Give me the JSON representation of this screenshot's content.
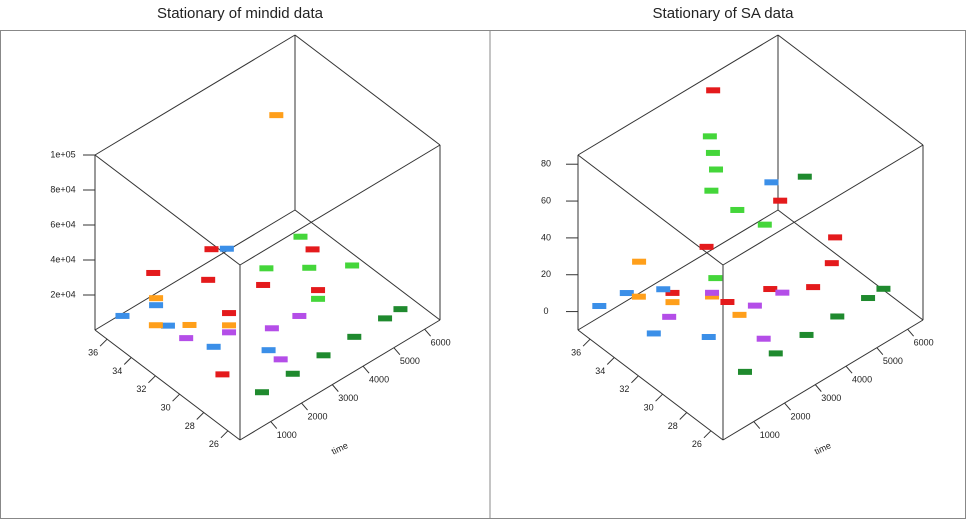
{
  "chart_data": [
    {
      "type": "scatter3d",
      "title": "Stationary of mindid data",
      "x_label": "time",
      "xlim": [
        0,
        6500
      ],
      "ylim": [
        25,
        37
      ],
      "zlim": [
        0,
        100000
      ],
      "xticks": [
        1000,
        2000,
        3000,
        4000,
        5000,
        6000
      ],
      "yticks": [
        26,
        28,
        30,
        32,
        34,
        36
      ],
      "zticks": [
        {
          "value": 20000,
          "label": "2e+04"
        },
        {
          "value": 40000,
          "label": "4e+04"
        },
        {
          "value": 60000,
          "label": "6e+04"
        },
        {
          "value": 80000,
          "label": "8e+04"
        },
        {
          "value": 100000,
          "label": "1e+05"
        }
      ],
      "series": [
        {
          "color": "#e41a1c",
          "x": [
            1500,
            2500,
            3500,
            4500,
            5500,
            2000,
            3000,
            1000
          ],
          "y": [
            36,
            34,
            32,
            30,
            33,
            31,
            35,
            29
          ],
          "values": [
            22000,
            18000,
            15000,
            12000,
            9000,
            20000,
            25000,
            6000
          ]
        },
        {
          "color": "#3b8fe8",
          "x": [
            500,
            1200,
            800,
            1500,
            2500,
            3500
          ],
          "y": [
            36,
            35,
            33,
            31,
            29,
            35
          ],
          "values": [
            8000,
            12000,
            15000,
            6000,
            4000,
            20000
          ]
        },
        {
          "color": "#44d63a",
          "x": [
            4000,
            5000,
            6000,
            5500,
            4500
          ],
          "y": [
            33,
            32,
            31,
            34,
            30
          ],
          "values": [
            14000,
            9000,
            5000,
            11000,
            7000
          ]
        },
        {
          "color": "#1f8a2e",
          "x": [
            1500,
            2500,
            3500,
            4500,
            5500,
            6000
          ],
          "y": [
            27,
            27,
            27,
            27,
            27,
            27
          ],
          "values": [
            1000,
            1000,
            1000,
            1000,
            1000,
            1000
          ]
        },
        {
          "color": "#ff9f1a",
          "x": [
            800,
            1500,
            2000,
            1200,
            5500
          ],
          "y": [
            34,
            33,
            31,
            35,
            36
          ],
          "values": [
            10000,
            8000,
            13000,
            16000,
            70000
          ]
        },
        {
          "color": "#b44ee8",
          "x": [
            1000,
            2000,
            3000,
            2500,
            3500
          ],
          "y": [
            32,
            31,
            30,
            28,
            29
          ],
          "values": [
            11000,
            9000,
            6000,
            4000,
            13000
          ]
        }
      ]
    },
    {
      "type": "scatter3d",
      "title": "Stationary of SA data",
      "x_label": "time",
      "xlim": [
        0,
        6500
      ],
      "ylim": [
        25,
        37
      ],
      "zlim": [
        -10,
        85
      ],
      "xticks": [
        1000,
        2000,
        3000,
        4000,
        5000,
        6000
      ],
      "yticks": [
        26,
        28,
        30,
        32,
        34,
        36
      ],
      "zticks": [
        0,
        20,
        40,
        60,
        80
      ],
      "series": [
        {
          "color": "#e41a1c",
          "x": [
            1500,
            2500,
            3500,
            4500,
            5500,
            6000,
            3000,
            5000,
            4000
          ],
          "y": [
            33,
            31,
            30,
            29,
            30,
            31,
            34,
            33,
            36
          ],
          "values": [
            15,
            10,
            12,
            8,
            6,
            10,
            20,
            30,
            85
          ]
        },
        {
          "color": "#3b8fe8",
          "x": [
            300,
            800,
            1200,
            500,
            1500,
            5500
          ],
          "y": [
            36,
            35,
            33,
            32,
            30,
            35
          ],
          "values": [
            5,
            12,
            20,
            8,
            6,
            25
          ]
        },
        {
          "color": "#44d63a",
          "x": [
            3500,
            3600,
            3700,
            3550,
            4000,
            2500,
            4500
          ],
          "y": [
            35,
            35,
            35,
            35,
            34,
            32,
            33
          ],
          "values": [
            70,
            60,
            50,
            40,
            30,
            18,
            22
          ]
        },
        {
          "color": "#1f8a2e",
          "x": [
            1500,
            2500,
            3500,
            4500,
            5500,
            6000,
            5800
          ],
          "y": [
            27,
            27,
            27,
            27,
            27,
            27,
            33
          ],
          "values": [
            2,
            2,
            2,
            2,
            2,
            2,
            35
          ]
        },
        {
          "color": "#ff9f1a",
          "x": [
            800,
            1500,
            2000,
            1200,
            2500
          ],
          "y": [
            34,
            33,
            31,
            35,
            30
          ],
          "values": [
            15,
            10,
            18,
            25,
            8
          ]
        },
        {
          "color": "#b44ee8",
          "x": [
            1000,
            2000,
            3000,
            2500,
            3500
          ],
          "y": [
            32,
            31,
            30,
            28,
            29
          ],
          "values": [
            12,
            20,
            8,
            5,
            15
          ]
        }
      ]
    }
  ]
}
